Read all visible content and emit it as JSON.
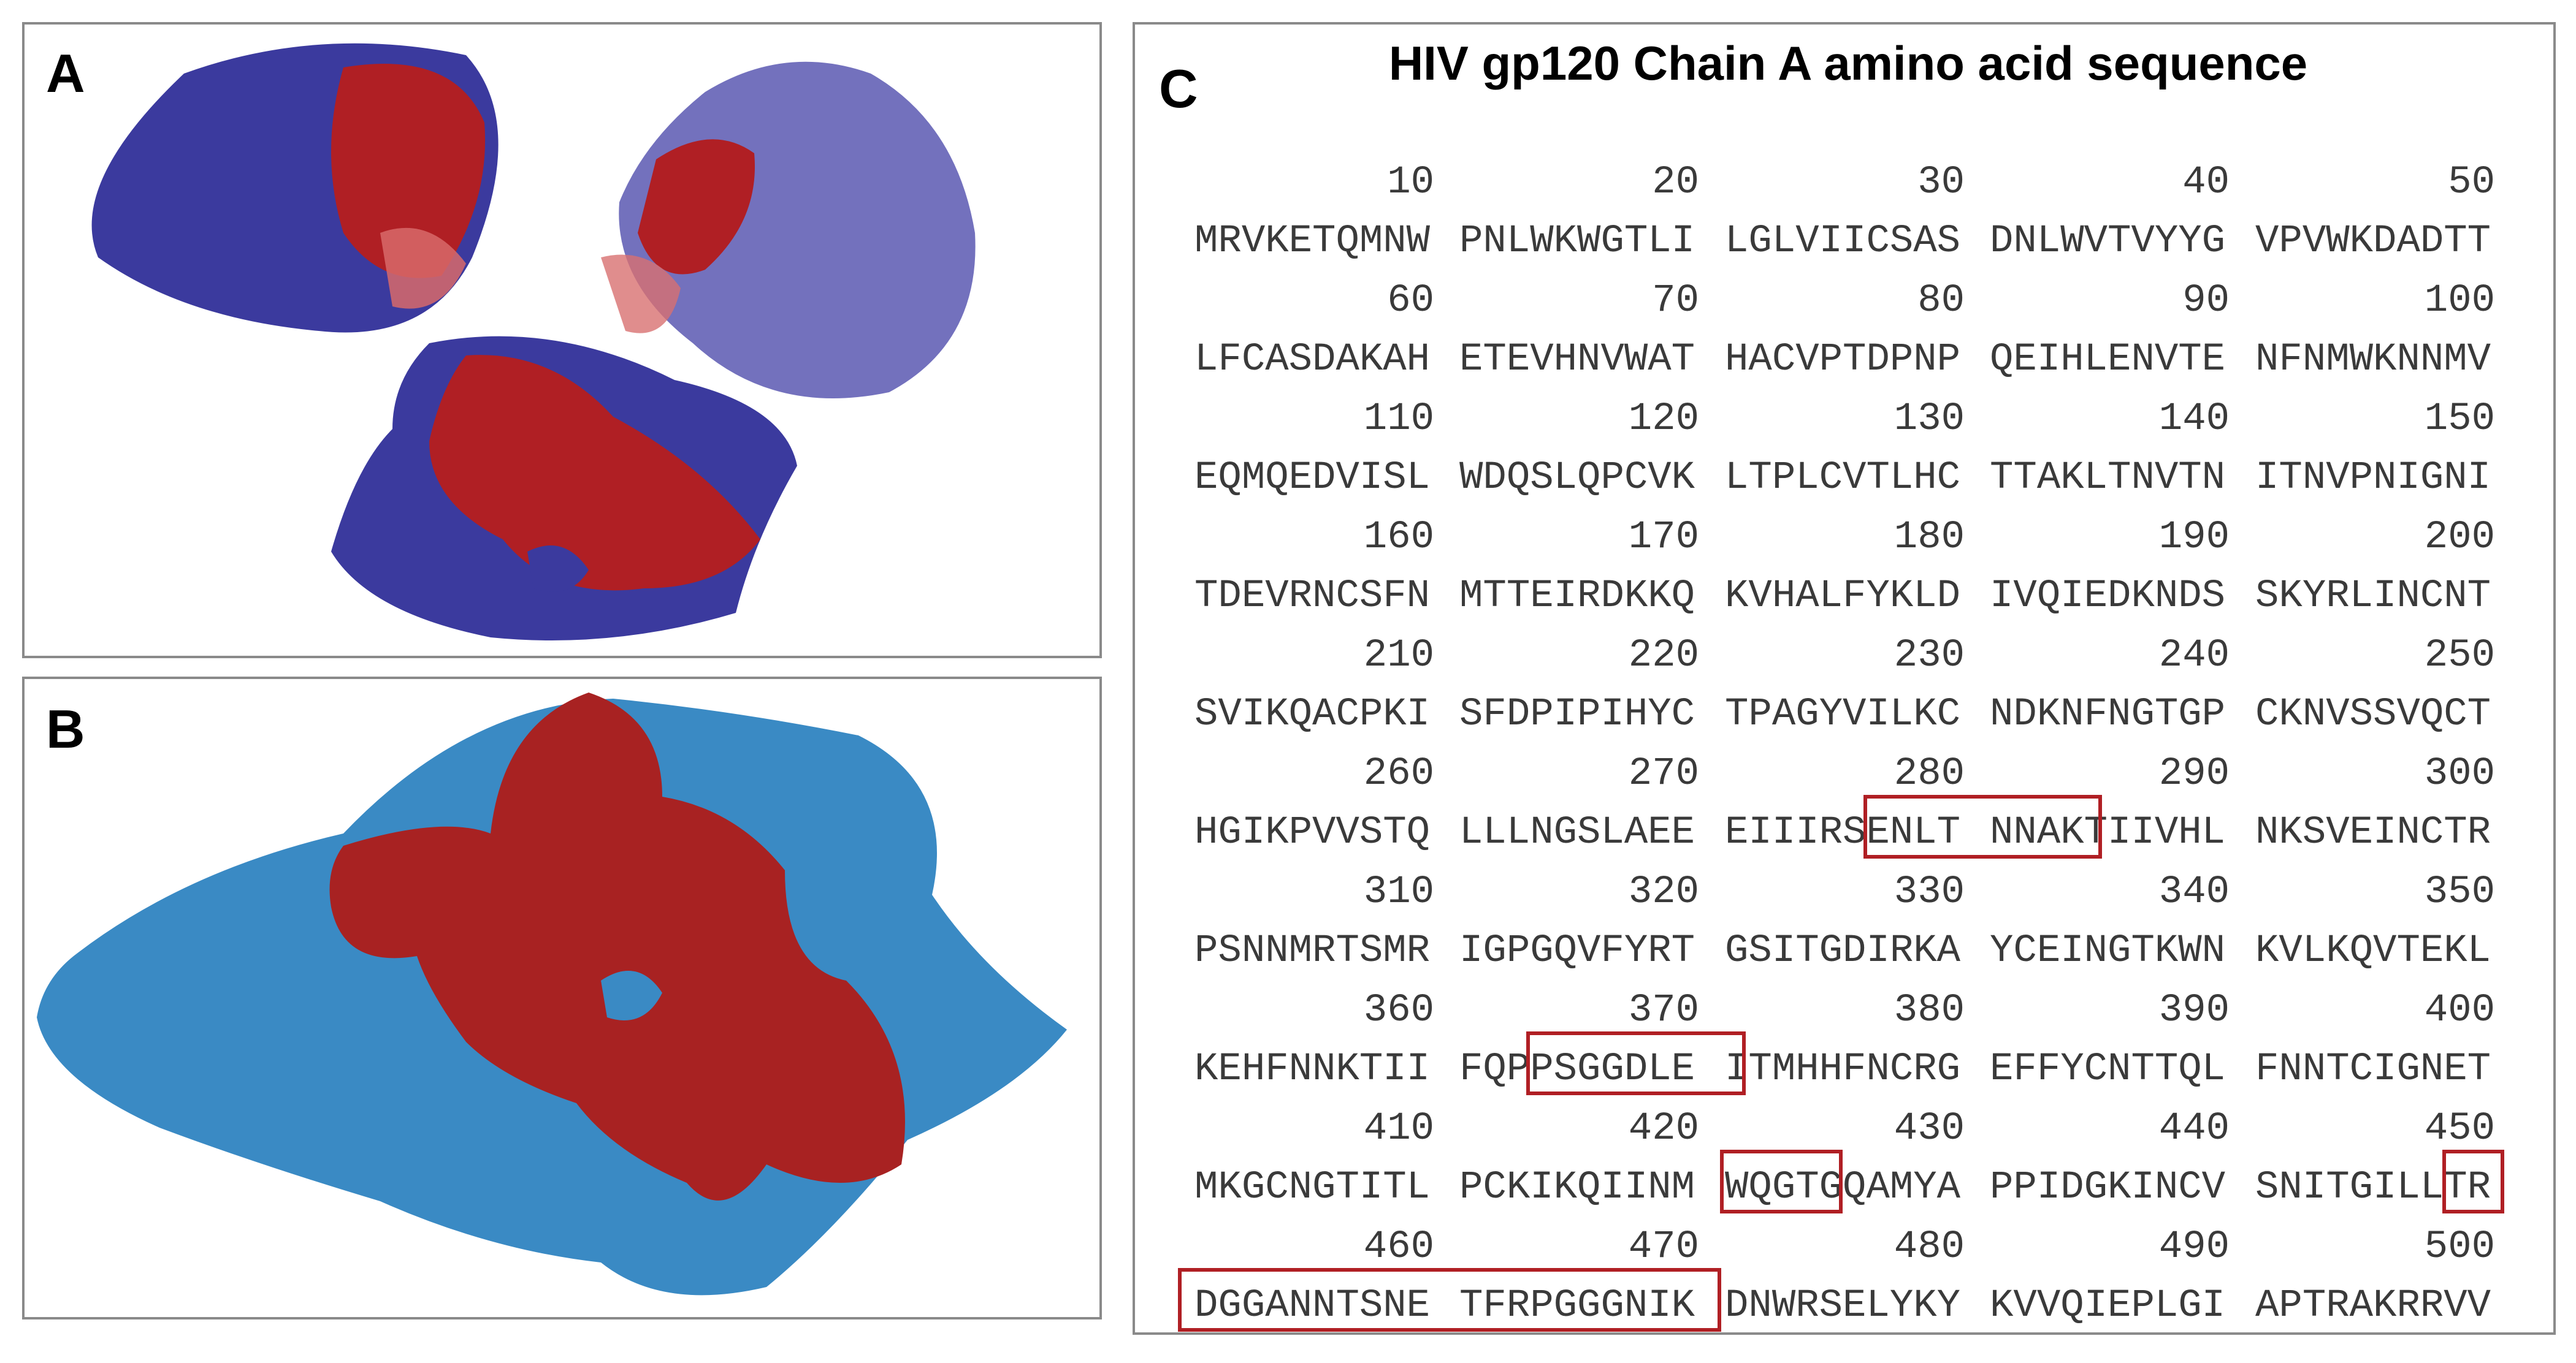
{
  "panels": {
    "a": {
      "label": "A"
    },
    "b": {
      "label": "B"
    },
    "c": {
      "label": "C",
      "title": "HIV gp120 Chain A amino acid sequence",
      "rows": [
        {
          "numbers": [
            10,
            20,
            30,
            40,
            50
          ],
          "blocks": [
            "MRVKETQMNW",
            "PNLWKWGTLI",
            "LGLVIICSAS",
            "DNLWVTVYYG",
            "VPVWKDADTT"
          ]
        },
        {
          "numbers": [
            60,
            70,
            80,
            90,
            100
          ],
          "blocks": [
            "LFCASDAKAH",
            "ETEVHNVWAT",
            "HACVPTDPNP",
            "QEIHLENVTE",
            "NFNMWKNNMV"
          ]
        },
        {
          "numbers": [
            110,
            120,
            130,
            140,
            150
          ],
          "blocks": [
            "EQMQEDVISL",
            "WDQSLQPCVK",
            "LTPLCVTLHC",
            "TTAKLTNVTN",
            "ITNVPNIGNI"
          ]
        },
        {
          "numbers": [
            160,
            170,
            180,
            190,
            200
          ],
          "blocks": [
            "TDEVRNCSFN",
            "MTTEIRDKKQ",
            "KVHALFYKLD",
            "IVQIEDKNDS",
            "SKYRLINCNT"
          ]
        },
        {
          "numbers": [
            210,
            220,
            230,
            240,
            250
          ],
          "blocks": [
            "SVIKQACPKI",
            "SFDPIPIHYC",
            "TPAGYVILKC",
            "NDKNFNGTGP",
            "CKNVSSVQCT"
          ]
        },
        {
          "numbers": [
            260,
            270,
            280,
            290,
            300
          ],
          "blocks": [
            "HGIKPVVSTQ",
            "LLLNGSLAEE",
            "EIIIRSENLT",
            "NNAKTIIVHL",
            "NKSVEINCTR"
          ]
        },
        {
          "numbers": [
            310,
            320,
            330,
            340,
            350
          ],
          "blocks": [
            "PSNNMRTSMR",
            "IGPGQVFYRT",
            "GSITGDIRKA",
            "YCEINGTKWN",
            "KVLKQVTEKL"
          ]
        },
        {
          "numbers": [
            360,
            370,
            380,
            390,
            400
          ],
          "blocks": [
            "KEHFNNKTII",
            "FQPPSGGDLE",
            "ITMHHFNCRG",
            "EFFYCNTTQL",
            "FNNTCIGNET"
          ]
        },
        {
          "numbers": [
            410,
            420,
            430,
            440,
            450
          ],
          "blocks": [
            "MKGCNGTITL",
            "PCKIKQIINM",
            "WQGTGQAMYA",
            "PPIDGKINCV",
            "SNITGILLTR"
          ]
        },
        {
          "numbers": [
            460,
            470,
            480,
            490,
            500
          ],
          "blocks": [
            "DGGANNTSNE",
            "TFRPGGGNIK",
            "DNWRSELYKY",
            "KVVQIEPLGI",
            "APTRAKRRVV"
          ]
        }
      ]
    }
  }
}
